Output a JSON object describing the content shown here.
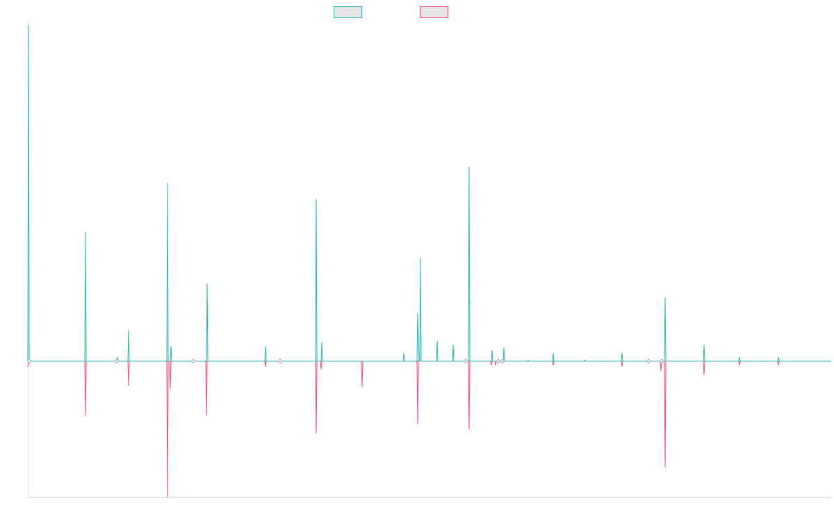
{
  "colors": {
    "series_1": "#36b8b4",
    "series_2": "#f0557a",
    "legend_fill": "#e6e6e6",
    "axis": "#dadada",
    "baseline": "#9aa3ad"
  },
  "chart_data": {
    "type": "line",
    "title": "",
    "xlabel": "",
    "ylabel": "",
    "legend": {
      "placement": "top-center",
      "entries": [
        "",
        ""
      ]
    },
    "grid": false,
    "x_range": [
      0,
      1156
    ],
    "ylim": [
      -1.0,
      2.47
    ],
    "series": [
      {
        "color": "#36b8b4",
        "points": [
          [
            0,
            0
          ],
          [
            1,
            2.47
          ],
          [
            2,
            0
          ],
          [
            82,
            0
          ],
          [
            83,
            0.95
          ],
          [
            84,
            0
          ],
          [
            128,
            0
          ],
          [
            129,
            0.03
          ],
          [
            130,
            0
          ],
          [
            144,
            0
          ],
          [
            145,
            0.23
          ],
          [
            146,
            0
          ],
          [
            200,
            0
          ],
          [
            201,
            1.31
          ],
          [
            202,
            0
          ],
          [
            205,
            0
          ],
          [
            206,
            0.11
          ],
          [
            207,
            0
          ],
          [
            257,
            0
          ],
          [
            258,
            0.57
          ],
          [
            259,
            0
          ],
          [
            341,
            0
          ],
          [
            342,
            0.11
          ],
          [
            343,
            0
          ],
          [
            414,
            0
          ],
          [
            415,
            1.19
          ],
          [
            416,
            0
          ],
          [
            422,
            0
          ],
          [
            423,
            0.14
          ],
          [
            424,
            0
          ],
          [
            540,
            0
          ],
          [
            541,
            0.06
          ],
          [
            542,
            0
          ],
          [
            560,
            0
          ],
          [
            561,
            0.35
          ],
          [
            563,
            0
          ],
          [
            564,
            0
          ],
          [
            565,
            0.76
          ],
          [
            566,
            0
          ],
          [
            588,
            0
          ],
          [
            589,
            0.15
          ],
          [
            590,
            0
          ],
          [
            611,
            0
          ],
          [
            612,
            0.12
          ],
          [
            613,
            0
          ],
          [
            634,
            0
          ],
          [
            635,
            1.43
          ],
          [
            636,
            0
          ],
          [
            667,
            0
          ],
          [
            668,
            0.08
          ],
          [
            669,
            0
          ],
          [
            684,
            0
          ],
          [
            685,
            0.1
          ],
          [
            686,
            0
          ],
          [
            719,
            0
          ],
          [
            720,
            0.01
          ],
          [
            721,
            0
          ],
          [
            755,
            0
          ],
          [
            756,
            0.06
          ],
          [
            757,
            0
          ],
          [
            800,
            0
          ],
          [
            801,
            0.01
          ],
          [
            802,
            0
          ],
          [
            854,
            0
          ],
          [
            855,
            0.06
          ],
          [
            856,
            0
          ],
          [
            916,
            0
          ],
          [
            917,
            0.47
          ],
          [
            918,
            0
          ],
          [
            972,
            0
          ],
          [
            973,
            0.12
          ],
          [
            974,
            0
          ],
          [
            1023,
            0
          ],
          [
            1024,
            0.03
          ],
          [
            1025,
            0
          ],
          [
            1079,
            0
          ],
          [
            1080,
            0.03
          ],
          [
            1081,
            0
          ],
          [
            1156,
            0
          ]
        ]
      },
      {
        "color": "#f0557a",
        "points": [
          [
            0,
            -0.04
          ],
          [
            2,
            0
          ],
          [
            82,
            0
          ],
          [
            83,
            -0.4
          ],
          [
            84,
            0
          ],
          [
            144,
            0
          ],
          [
            145,
            -0.18
          ],
          [
            146,
            0
          ],
          [
            200,
            0
          ],
          [
            201,
            -1.0
          ],
          [
            202,
            0
          ],
          [
            204,
            0
          ],
          [
            205,
            -0.2
          ],
          [
            206,
            0
          ],
          [
            256,
            0
          ],
          [
            257,
            -0.4
          ],
          [
            258,
            0
          ],
          [
            341,
            0
          ],
          [
            342,
            -0.04
          ],
          [
            343,
            0
          ],
          [
            414,
            0
          ],
          [
            415,
            -0.53
          ],
          [
            416,
            0
          ],
          [
            421,
            0
          ],
          [
            422,
            -0.06
          ],
          [
            423,
            0
          ],
          [
            480,
            0
          ],
          [
            481,
            -0.19
          ],
          [
            482,
            0
          ],
          [
            560,
            0
          ],
          [
            561,
            -0.46
          ],
          [
            562,
            0
          ],
          [
            634,
            0
          ],
          [
            635,
            -0.5
          ],
          [
            636,
            0
          ],
          [
            666,
            0
          ],
          [
            667,
            -0.03
          ],
          [
            668,
            0
          ],
          [
            672,
            0
          ],
          [
            673,
            -0.03
          ],
          [
            674,
            0
          ],
          [
            755,
            0
          ],
          [
            756,
            -0.03
          ],
          [
            757,
            0
          ],
          [
            854,
            0
          ],
          [
            855,
            -0.04
          ],
          [
            856,
            0
          ],
          [
            910,
            0
          ],
          [
            911,
            -0.07
          ],
          [
            912,
            0
          ],
          [
            916,
            0
          ],
          [
            917,
            -0.78
          ],
          [
            918,
            0
          ],
          [
            972,
            0
          ],
          [
            973,
            -0.1
          ],
          [
            974,
            0
          ],
          [
            1023,
            0
          ],
          [
            1024,
            -0.03
          ],
          [
            1025,
            0
          ],
          [
            1079,
            0
          ],
          [
            1080,
            -0.03
          ],
          [
            1081,
            0
          ],
          [
            1156,
            0
          ]
        ]
      }
    ],
    "markers_x": [
      2,
      128,
      238,
      363,
      630,
      677,
      683,
      893,
      912
    ]
  }
}
